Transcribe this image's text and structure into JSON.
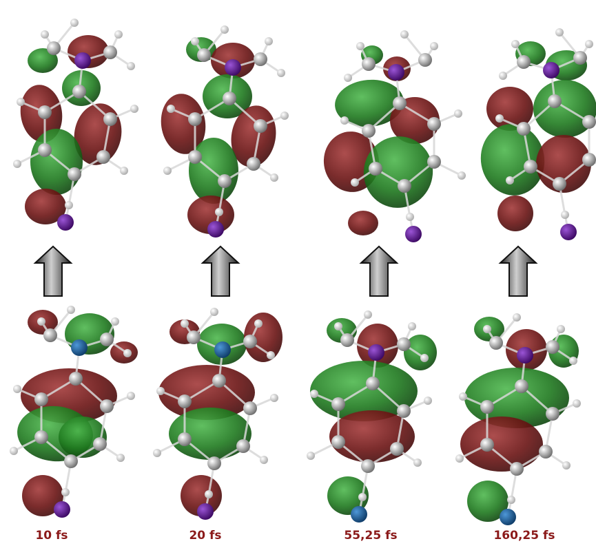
{
  "colors": {
    "lobe_red": "#6b1414",
    "lobe_green": "#1f7a1f",
    "label": "#8b1a1a",
    "atom_carbon": "#9a9a9a",
    "atom_hydrogen": "#e6e6e6",
    "atom_iodine": "#5a0f8c",
    "atom_blue": "#1a5a9a",
    "arrow": "#3a3a3a"
  },
  "frames": [
    {
      "time": "10 fs",
      "bottom_center_atom": "atom_blue",
      "bottom_end_atom": "atom_iodine"
    },
    {
      "time": "20 fs",
      "bottom_center_atom": "atom_blue",
      "bottom_end_atom": "atom_iodine"
    },
    {
      "time": "55,25 fs",
      "bottom_center_atom": "atom_iodine",
      "bottom_end_atom": "atom_blue"
    },
    {
      "time": "160,25 fs",
      "bottom_center_atom": "atom_iodine",
      "bottom_end_atom": "atom_blue"
    }
  ]
}
